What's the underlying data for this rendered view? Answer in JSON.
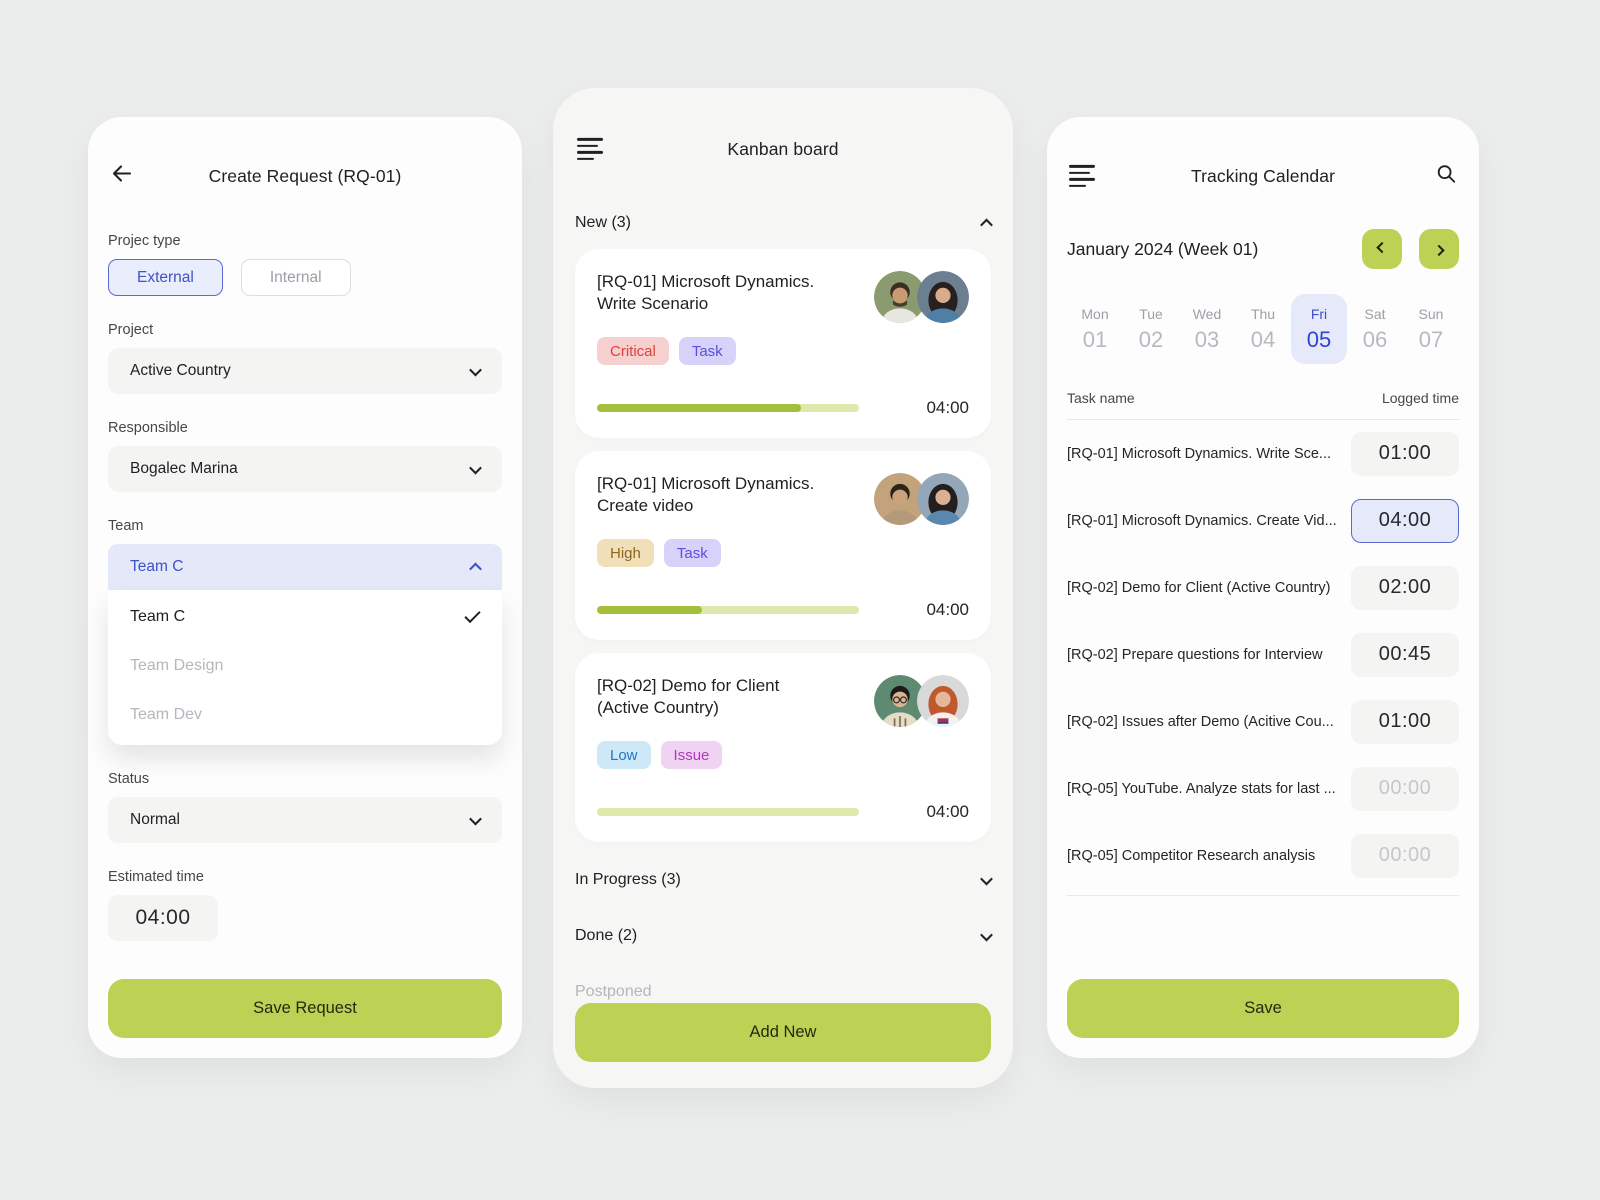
{
  "app": {
    "accent_green": "#bdd155",
    "accent_blue": "#3f51c7",
    "selection_lavender": "#e5e9f9"
  },
  "create_request": {
    "title": "Create Request (RQ-01)",
    "back_icon": "arrow-left-icon",
    "project_type_label": "Projec type",
    "project_type_options": [
      {
        "label": "External",
        "selected": true
      },
      {
        "label": "Internal",
        "selected": false
      }
    ],
    "project_label": "Project",
    "project_value": "Active Country",
    "responsible_label": "Responsible",
    "responsible_value": "Bogalec Marina",
    "team_label": "Team",
    "team_value": "Team C",
    "team_options": [
      {
        "label": "Team C",
        "checked": true
      },
      {
        "label": "Team Design",
        "checked": false
      },
      {
        "label": "Team Dev",
        "checked": false
      }
    ],
    "status_label": "Status",
    "status_value": "Normal",
    "estimated_label": "Estimated time",
    "estimated_value": "04:00",
    "save_label": "Save Request"
  },
  "kanban": {
    "title": "Kanban board",
    "menu_icon": "hamburger-menu-icon",
    "new_section_label": "New (3)",
    "cards": [
      {
        "line1": "[RQ-01] Microsoft Dynamics.",
        "line2": "Write Scenario",
        "tags": [
          {
            "label": "Critical",
            "type": "critical"
          },
          {
            "label": "Task",
            "type": "task"
          }
        ],
        "progress": 78,
        "time": "04:00",
        "assignees": [
          "avatar-man-beard",
          "avatar-woman-dark-hair"
        ]
      },
      {
        "line1": "[RQ-01] Microsoft Dynamics.",
        "line2": "Create video",
        "tags": [
          {
            "label": "High",
            "type": "high"
          },
          {
            "label": "Task",
            "type": "task"
          }
        ],
        "progress": 40,
        "time": "04:00",
        "assignees": [
          "avatar-young-man",
          "avatar-woman-long-hair"
        ]
      },
      {
        "line1": "[RQ-02] Demo for Client",
        "line2": "(Active Country)",
        "tags": [
          {
            "label": "Low",
            "type": "low"
          },
          {
            "label": "Issue",
            "type": "issue"
          }
        ],
        "progress": 0,
        "time": "04:00",
        "assignees": [
          "avatar-man-glasses",
          "avatar-woman-red-hair"
        ]
      }
    ],
    "in_progress_label": "In Progress (3)",
    "done_label": "Done (2)",
    "postponed_label": "Postponed",
    "add_new_label": "Add New"
  },
  "tracking": {
    "title": "Tracking Calendar",
    "menu_icon": "hamburger-menu-icon",
    "search_icon": "search-icon",
    "period": "January 2024 (Week 01)",
    "days": [
      {
        "name": "Mon",
        "date": "01",
        "selected": false
      },
      {
        "name": "Tue",
        "date": "02",
        "selected": false
      },
      {
        "name": "Wed",
        "date": "03",
        "selected": false
      },
      {
        "name": "Thu",
        "date": "04",
        "selected": false
      },
      {
        "name": "Fri",
        "date": "05",
        "selected": true
      },
      {
        "name": "Sat",
        "date": "06",
        "selected": false
      },
      {
        "name": "Sun",
        "date": "07",
        "selected": false
      }
    ],
    "col_task": "Task name",
    "col_time": "Logged time",
    "rows": [
      {
        "name": "[RQ-01] Microsoft Dynamics. Write Sce...",
        "time": "01:00",
        "selected": false,
        "empty": false
      },
      {
        "name": "[RQ-01] Microsoft Dynamics. Create Vid...",
        "time": "04:00",
        "selected": true,
        "empty": false
      },
      {
        "name": "[RQ-02] Demo for Client (Active Country)",
        "time": "02:00",
        "selected": false,
        "empty": false
      },
      {
        "name": "[RQ-02] Prepare questions for Interview",
        "time": "00:45",
        "selected": false,
        "empty": false
      },
      {
        "name": "[RQ-02] Issues after Demo (Acitive Cou...",
        "time": "01:00",
        "selected": false,
        "empty": false
      },
      {
        "name": "[RQ-05] YouTube. Analyze stats for last ...",
        "time": "00:00",
        "selected": false,
        "empty": true
      },
      {
        "name": "[RQ-05] Competitor Research analysis",
        "time": "00:00",
        "selected": false,
        "empty": true
      }
    ],
    "save_label": "Save"
  }
}
